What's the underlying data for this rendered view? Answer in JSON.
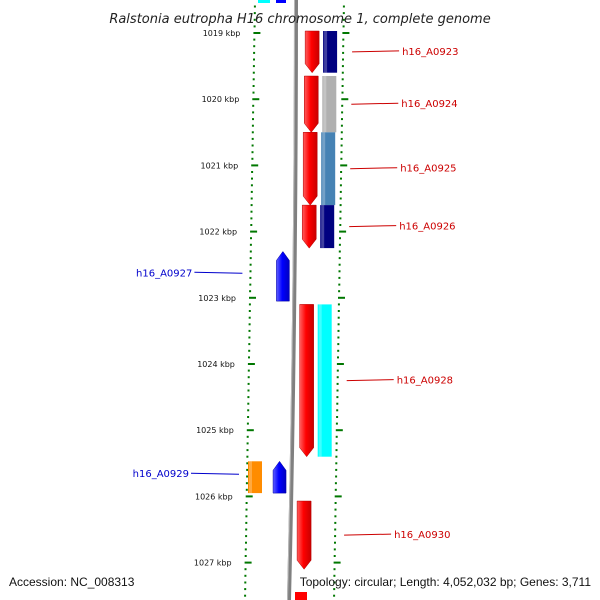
{
  "title": "Ralstonia eutropha H16 chromosome 1, complete genome",
  "ruler": {
    "unit": "kbp",
    "ticks": [
      {
        "value": 1019,
        "label": "1019 kbp"
      },
      {
        "value": 1020,
        "label": "1020 kbp"
      },
      {
        "value": 1021,
        "label": "1021 kbp"
      },
      {
        "value": 1022,
        "label": "1022 kbp"
      },
      {
        "value": 1023,
        "label": "1023 kbp"
      },
      {
        "value": 1024,
        "label": "1024 kbp"
      },
      {
        "value": 1025,
        "label": "1025 kbp"
      },
      {
        "value": 1026,
        "label": "1026 kbp"
      },
      {
        "value": 1027,
        "label": "1027 kbp"
      }
    ]
  },
  "genes": [
    {
      "id": "h16_A0923",
      "strand": "forward",
      "start_kbp": 1018.97,
      "end_kbp": 1019.6,
      "color": "#ff0000",
      "cog_color": "#000080"
    },
    {
      "id": "h16_A0924",
      "strand": "forward",
      "start_kbp": 1019.65,
      "end_kbp": 1020.5,
      "color": "#ff0000",
      "cog_color": "#b0b0b0"
    },
    {
      "id": "h16_A0925",
      "strand": "forward",
      "start_kbp": 1020.5,
      "end_kbp": 1021.6,
      "color": "#ff0000",
      "cog_color": "#4682b4"
    },
    {
      "id": "h16_A0926",
      "strand": "forward",
      "start_kbp": 1021.6,
      "end_kbp": 1022.25,
      "color": "#ff0000",
      "cog_color": "#000080"
    },
    {
      "id": "h16_A0927",
      "strand": "reverse",
      "start_kbp": 1022.3,
      "end_kbp": 1023.05,
      "color": "#0000ff"
    },
    {
      "id": "h16_A0928",
      "strand": "forward",
      "start_kbp": 1023.1,
      "end_kbp": 1025.4,
      "color": "#ff0000",
      "cog_color": "#00ffff"
    },
    {
      "id": "h16_A0929",
      "strand": "reverse",
      "start_kbp": 1025.47,
      "end_kbp": 1025.95,
      "color": "#0000ff",
      "cog_color": "#ff8c00"
    },
    {
      "id": "h16_A0930",
      "strand": "forward",
      "start_kbp": 1026.07,
      "end_kbp": 1027.1,
      "color": "#ff0000"
    }
  ],
  "footer": {
    "accession": "Accession: NC_008313",
    "info": "Topology: circular; Length: 4,052,032 bp; Genes: 3,711"
  },
  "colors": {
    "backbone": "#808080",
    "tick_green": "#007700",
    "forward_label": "#cc0000",
    "reverse_label": "#0000cc"
  }
}
